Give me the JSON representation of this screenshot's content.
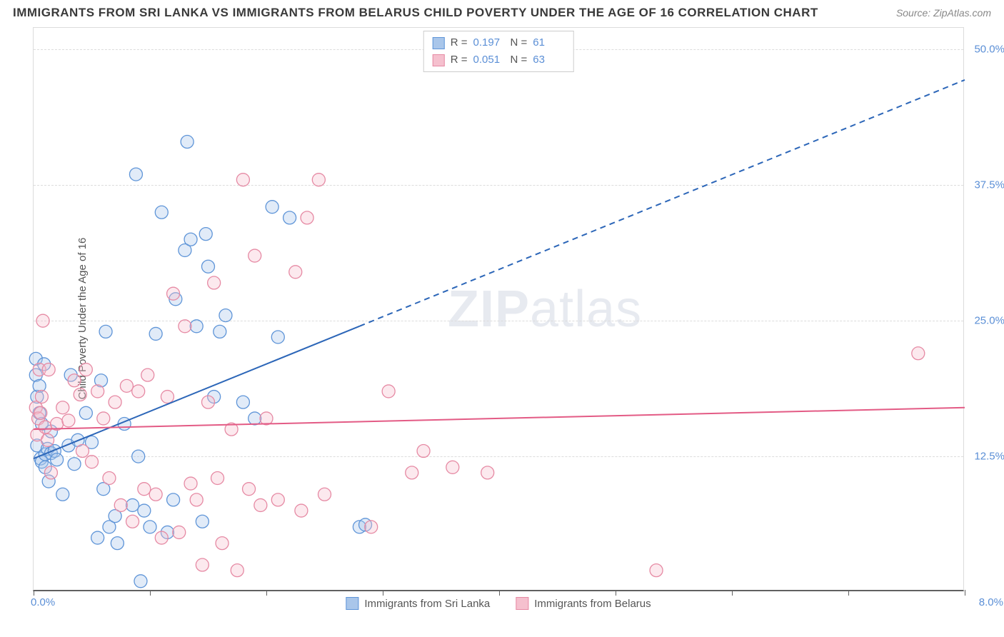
{
  "header": {
    "title": "IMMIGRANTS FROM SRI LANKA VS IMMIGRANTS FROM BELARUS CHILD POVERTY UNDER THE AGE OF 16 CORRELATION CHART",
    "source": "Source: ZipAtlas.com"
  },
  "chart": {
    "type": "scatter",
    "y_axis_label": "Child Poverty Under the Age of 16",
    "xlim": [
      0,
      8
    ],
    "ylim": [
      0,
      52
    ],
    "x_origin_label": "0.0%",
    "x_max_label": "8.0%",
    "y_ticks": [
      {
        "v": 12.5,
        "label": "12.5%"
      },
      {
        "v": 25.0,
        "label": "25.0%"
      },
      {
        "v": 37.5,
        "label": "37.5%"
      },
      {
        "v": 50.0,
        "label": "50.0%"
      }
    ],
    "x_tick_vals": [
      0,
      1,
      2,
      3,
      4,
      5,
      6,
      7,
      8
    ],
    "background_color": "#ffffff",
    "grid_color": "#dcdcdc",
    "axis_color": "#606060",
    "tick_label_color": "#5b8fd6",
    "marker_radius": 9,
    "marker_fill_opacity": 0.35,
    "series": [
      {
        "name": "Immigrants from Sri Lanka",
        "color_stroke": "#5f95d8",
        "color_fill": "#a9c6ea",
        "R": "0.197",
        "N": "61",
        "trend": {
          "x1": 0.0,
          "y1": 12.3,
          "x2": 2.8,
          "y2": 24.5,
          "x2_ext": 8.0,
          "y2_ext": 47.2,
          "stroke": "#2c66b8",
          "stroke_width": 2
        },
        "points": [
          [
            0.02,
            21.5
          ],
          [
            0.02,
            20.0
          ],
          [
            0.03,
            18.0
          ],
          [
            0.03,
            13.5
          ],
          [
            0.05,
            16.5
          ],
          [
            0.05,
            19.0
          ],
          [
            0.06,
            12.3
          ],
          [
            0.07,
            12.0
          ],
          [
            0.07,
            15.5
          ],
          [
            0.09,
            21.0
          ],
          [
            0.1,
            12.7
          ],
          [
            0.1,
            11.5
          ],
          [
            0.12,
            13.2
          ],
          [
            0.13,
            10.2
          ],
          [
            0.15,
            12.8
          ],
          [
            0.15,
            14.8
          ],
          [
            0.18,
            13.0
          ],
          [
            0.2,
            12.2
          ],
          [
            0.25,
            9.0
          ],
          [
            0.3,
            13.5
          ],
          [
            0.32,
            20.0
          ],
          [
            0.35,
            11.8
          ],
          [
            0.38,
            14.0
          ],
          [
            0.45,
            16.5
          ],
          [
            0.5,
            13.8
          ],
          [
            0.55,
            5.0
          ],
          [
            0.58,
            19.5
          ],
          [
            0.6,
            9.5
          ],
          [
            0.62,
            24.0
          ],
          [
            0.65,
            6.0
          ],
          [
            0.7,
            7.0
          ],
          [
            0.72,
            4.5
          ],
          [
            0.78,
            15.5
          ],
          [
            0.85,
            8.0
          ],
          [
            0.88,
            38.5
          ],
          [
            0.9,
            12.5
          ],
          [
            0.92,
            1.0
          ],
          [
            0.95,
            7.5
          ],
          [
            1.0,
            6.0
          ],
          [
            1.05,
            23.8
          ],
          [
            1.1,
            35.0
          ],
          [
            1.15,
            5.5
          ],
          [
            1.2,
            8.5
          ],
          [
            1.22,
            27.0
          ],
          [
            1.3,
            31.5
          ],
          [
            1.32,
            41.5
          ],
          [
            1.35,
            32.5
          ],
          [
            1.4,
            24.5
          ],
          [
            1.45,
            6.5
          ],
          [
            1.48,
            33.0
          ],
          [
            1.5,
            30.0
          ],
          [
            1.55,
            18.0
          ],
          [
            1.6,
            24.0
          ],
          [
            1.65,
            25.5
          ],
          [
            1.8,
            17.5
          ],
          [
            1.9,
            16.0
          ],
          [
            2.05,
            35.5
          ],
          [
            2.1,
            23.5
          ],
          [
            2.2,
            34.5
          ],
          [
            2.8,
            6.0
          ],
          [
            2.85,
            6.2
          ]
        ]
      },
      {
        "name": "Immigrants from Belarus",
        "color_stroke": "#e68aa4",
        "color_fill": "#f5c0ce",
        "R": "0.051",
        "N": "63",
        "trend": {
          "x1": 0.0,
          "y1": 15.0,
          "x2": 8.0,
          "y2": 17.0,
          "stroke": "#e35b85",
          "stroke_width": 2
        },
        "points": [
          [
            0.02,
            17.0
          ],
          [
            0.03,
            14.5
          ],
          [
            0.04,
            16.0
          ],
          [
            0.05,
            20.5
          ],
          [
            0.06,
            16.5
          ],
          [
            0.07,
            18.0
          ],
          [
            0.08,
            25.0
          ],
          [
            0.1,
            15.2
          ],
          [
            0.12,
            14.0
          ],
          [
            0.13,
            20.5
          ],
          [
            0.15,
            11.0
          ],
          [
            0.2,
            15.5
          ],
          [
            0.25,
            17.0
          ],
          [
            0.3,
            15.8
          ],
          [
            0.35,
            19.5
          ],
          [
            0.4,
            18.2
          ],
          [
            0.45,
            20.5
          ],
          [
            0.5,
            12.0
          ],
          [
            0.55,
            18.5
          ],
          [
            0.6,
            16.0
          ],
          [
            0.65,
            10.5
          ],
          [
            0.7,
            17.5
          ],
          [
            0.75,
            8.0
          ],
          [
            0.8,
            19.0
          ],
          [
            0.85,
            6.5
          ],
          [
            0.9,
            18.5
          ],
          [
            0.95,
            9.5
          ],
          [
            0.98,
            20.0
          ],
          [
            1.05,
            9.0
          ],
          [
            1.1,
            5.0
          ],
          [
            1.15,
            18.0
          ],
          [
            1.2,
            27.5
          ],
          [
            1.25,
            5.5
          ],
          [
            1.3,
            24.5
          ],
          [
            1.35,
            10.0
          ],
          [
            1.4,
            8.5
          ],
          [
            1.45,
            2.5
          ],
          [
            1.5,
            17.5
          ],
          [
            1.55,
            28.5
          ],
          [
            1.58,
            10.5
          ],
          [
            1.7,
            15.0
          ],
          [
            1.75,
            2.0
          ],
          [
            1.8,
            38.0
          ],
          [
            1.85,
            9.5
          ],
          [
            1.9,
            31.0
          ],
          [
            1.95,
            8.0
          ],
          [
            2.0,
            16.0
          ],
          [
            2.1,
            8.5
          ],
          [
            2.25,
            29.5
          ],
          [
            2.3,
            7.5
          ],
          [
            2.35,
            34.5
          ],
          [
            2.45,
            38.0
          ],
          [
            2.5,
            9.0
          ],
          [
            2.9,
            6.0
          ],
          [
            3.05,
            18.5
          ],
          [
            3.25,
            11.0
          ],
          [
            3.35,
            13.0
          ],
          [
            3.6,
            11.5
          ],
          [
            3.9,
            11.0
          ],
          [
            5.35,
            2.0
          ],
          [
            7.6,
            22.0
          ],
          [
            0.42,
            13.0
          ],
          [
            1.62,
            4.5
          ]
        ]
      }
    ],
    "legend_bottom": [
      {
        "label": "Immigrants from Sri Lanka",
        "fill": "#a9c6ea",
        "stroke": "#5f95d8"
      },
      {
        "label": "Immigrants from Belarus",
        "fill": "#f5c0ce",
        "stroke": "#e68aa4"
      }
    ],
    "watermark": {
      "zip": "ZIP",
      "atlas": "atlas"
    }
  }
}
